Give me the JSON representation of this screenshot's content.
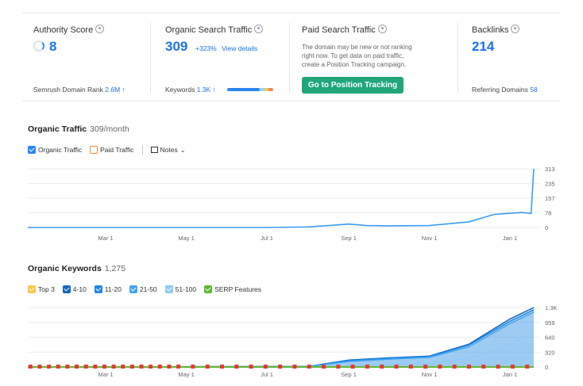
{
  "authority": {
    "title": "Authority Score",
    "value": "8",
    "rank_label": "Semrush Domain Rank",
    "rank_value": "2.6M ↑"
  },
  "organic": {
    "title": "Organic Search Traffic",
    "value": "309",
    "change": "+323%",
    "link": "View details",
    "keywords_label": "Keywords",
    "keywords_value": "1.3K ↑"
  },
  "paid": {
    "title": "Paid Search Traffic",
    "desc_1": "The domain may be new or not ranking",
    "desc_2": "right now. To get data on paid traffic,",
    "desc_3": "create a Position Tracking campaign.",
    "cta": "Go to Position Tracking"
  },
  "backlinks": {
    "title": "Backlinks",
    "value": "214",
    "ref_label": "Referring Domains",
    "ref_value": "58"
  },
  "traffic_section": {
    "title": "Organic Traffic",
    "sub": "309/month",
    "legend": {
      "organic": "Organic Traffic",
      "paid": "Paid Traffic",
      "notes": "Notes"
    }
  },
  "keywords_section": {
    "title": "Organic Keywords",
    "sub": "1,275",
    "legend": {
      "top3": "Top 3",
      "b4_10": "4-10",
      "b11_20": "11-20",
      "b21_50": "21-50",
      "b51_100": "51-100",
      "serp": "SERP Features"
    }
  },
  "colors": {
    "accent": "#1a73e8",
    "cta": "#1fa67a",
    "top3": "#f7c948",
    "b4_10": "#1565c0",
    "b11_20": "#1e88e5",
    "b21_50": "#42a5f5",
    "b51_100": "#90caf9",
    "serp": "#5fb832"
  },
  "chart_data": [
    {
      "type": "line",
      "title": "Organic Traffic",
      "x_ticks": [
        "Mar 1",
        "May 1",
        "Jul 1",
        "Sep 1",
        "Nov 1",
        "Jan 1"
      ],
      "y_ticks": [
        "313",
        "235",
        "157",
        "78",
        "0"
      ],
      "ylim": [
        0,
        313
      ],
      "series": [
        {
          "name": "Organic Traffic",
          "points": [
            [
              "Jan 1",
              0
            ],
            [
              "Mar 1",
              0
            ],
            [
              "May 1",
              0
            ],
            [
              "Jul 1",
              0
            ],
            [
              "Aug 1",
              3
            ],
            [
              "Aug 20",
              12
            ],
            [
              "Sep 1",
              18
            ],
            [
              "Sep 15",
              10
            ],
            [
              "Oct 1",
              9
            ],
            [
              "Nov 1",
              10
            ],
            [
              "Dec 1",
              30
            ],
            [
              "Dec 20",
              70
            ],
            [
              "Jan 10",
              80
            ],
            [
              "Jan 17",
              75
            ],
            [
              "Jan 19",
              313
            ]
          ]
        }
      ]
    },
    {
      "type": "area",
      "title": "Organic Keywords",
      "x_ticks": [
        "Mar 1",
        "May 1",
        "Jul 1",
        "Sep 1",
        "Nov 1",
        "Jan 1"
      ],
      "y_ticks": [
        "1.3K",
        "959",
        "640",
        "320",
        "0"
      ],
      "ylim": [
        0,
        1300
      ],
      "series": [
        {
          "name": "Top 3",
          "points": [
            [
              "Jan 1",
              0
            ],
            [
              "Jan 19",
              0
            ]
          ]
        },
        {
          "name": "4-10",
          "points": [
            [
              "Jan 1",
              0
            ],
            [
              "Aug 1",
              10
            ],
            [
              "Sep 1",
              150
            ],
            [
              "Oct 1",
              200
            ],
            [
              "Nov 1",
              240
            ],
            [
              "Dec 1",
              500
            ],
            [
              "Jan 1",
              1050
            ],
            [
              "Jan 19",
              1300
            ]
          ]
        },
        {
          "name": "11-20",
          "points": [
            [
              "Jan 1",
              0
            ],
            [
              "Aug 1",
              10
            ],
            [
              "Sep 1",
              140
            ],
            [
              "Oct 1",
              190
            ],
            [
              "Nov 1",
              230
            ],
            [
              "Dec 1",
              480
            ],
            [
              "Jan 1",
              1000
            ],
            [
              "Jan 19",
              1250
            ]
          ]
        },
        {
          "name": "21-50",
          "points": [
            [
              "Jan 1",
              0
            ],
            [
              "Aug 1",
              8
            ],
            [
              "Sep 1",
              120
            ],
            [
              "Oct 1",
              170
            ],
            [
              "Nov 1",
              210
            ],
            [
              "Dec 1",
              440
            ],
            [
              "Jan 1",
              950
            ],
            [
              "Jan 19",
              1200
            ]
          ]
        },
        {
          "name": "51-100",
          "points": [
            [
              "Jan 1",
              0
            ],
            [
              "Aug 1",
              2
            ],
            [
              "Sep 1",
              40
            ],
            [
              "Oct 1",
              60
            ],
            [
              "Nov 1",
              80
            ],
            [
              "Dec 1",
              200
            ],
            [
              "Jan 1",
              500
            ],
            [
              "Jan 19",
              780
            ]
          ]
        }
      ]
    }
  ]
}
